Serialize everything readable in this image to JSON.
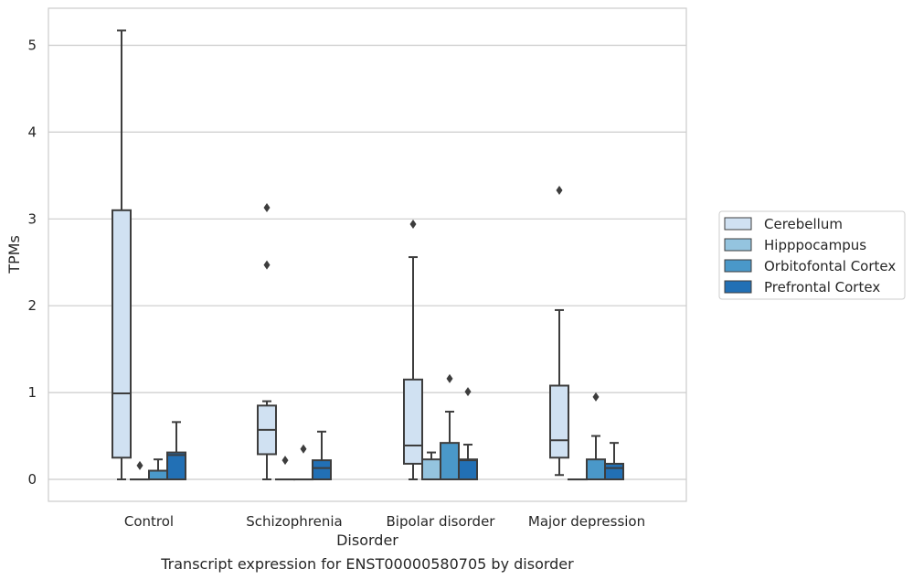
{
  "chart_data": {
    "type": "box",
    "caption": "Transcript expression for ENST00000580705 by disorder",
    "xlabel": "Disorder",
    "ylabel": "TPMs",
    "ylim": [
      -0.25,
      5.4
    ],
    "yticks": [
      "0",
      "1",
      "2",
      "3",
      "4",
      "5"
    ],
    "grid": "horizontal",
    "legend_position": "right",
    "categories": [
      "Control",
      "Schizophrenia",
      "Bipolar disorder",
      "Major depression"
    ],
    "series": [
      {
        "name": "Cerebellum",
        "color": "#d0e1f2",
        "boxes": [
          {
            "whisker_low": 0,
            "q1": 0.25,
            "median": 0.99,
            "q3": 3.1,
            "whisker_high": 5.17,
            "outliers": []
          },
          {
            "whisker_low": 0,
            "q1": 0.29,
            "median": 0.57,
            "q3": 0.85,
            "whisker_high": 0.9,
            "outliers": [
              3.13,
              2.47
            ]
          },
          {
            "whisker_low": 0,
            "q1": 0.18,
            "median": 0.39,
            "q3": 1.15,
            "whisker_high": 2.56,
            "outliers": [
              2.94
            ]
          },
          {
            "whisker_low": 0.05,
            "q1": 0.25,
            "median": 0.45,
            "q3": 1.08,
            "whisker_high": 1.95,
            "outliers": [
              3.33
            ]
          }
        ]
      },
      {
        "name": "Hipppocampus",
        "color": "#94c4df",
        "boxes": [
          {
            "whisker_low": 0,
            "q1": 0,
            "median": 0,
            "q3": 0,
            "whisker_high": 0,
            "outliers": [
              0.16
            ]
          },
          {
            "whisker_low": 0,
            "q1": 0,
            "median": 0,
            "q3": 0,
            "whisker_high": 0,
            "outliers": [
              0.22
            ]
          },
          {
            "whisker_low": 0,
            "q1": 0,
            "median": 0,
            "q3": 0.23,
            "whisker_high": 0.31,
            "outliers": []
          },
          {
            "whisker_low": 0,
            "q1": 0,
            "median": 0,
            "q3": 0,
            "whisker_high": 0,
            "outliers": []
          }
        ]
      },
      {
        "name": "Orbitofontal Cortex",
        "color": "#4a98c9",
        "boxes": [
          {
            "whisker_low": 0,
            "q1": 0,
            "median": 0,
            "q3": 0.1,
            "whisker_high": 0.23,
            "outliers": []
          },
          {
            "whisker_low": 0,
            "q1": 0,
            "median": 0,
            "q3": 0,
            "whisker_high": 0,
            "outliers": [
              0.35
            ]
          },
          {
            "whisker_low": 0,
            "q1": 0,
            "median": 0,
            "q3": 0.42,
            "whisker_high": 0.78,
            "outliers": [
              1.16
            ]
          },
          {
            "whisker_low": 0,
            "q1": 0,
            "median": 0,
            "q3": 0.23,
            "whisker_high": 0.5,
            "outliers": [
              0.95
            ]
          }
        ]
      },
      {
        "name": "Prefrontal Cortex",
        "color": "#2270b5",
        "boxes": [
          {
            "whisker_low": 0,
            "q1": 0,
            "median": 0.28,
            "q3": 0.31,
            "whisker_high": 0.66,
            "outliers": []
          },
          {
            "whisker_low": 0,
            "q1": 0,
            "median": 0.13,
            "q3": 0.22,
            "whisker_high": 0.55,
            "outliers": []
          },
          {
            "whisker_low": 0,
            "q1": 0,
            "median": 0.22,
            "q3": 0.23,
            "whisker_high": 0.4,
            "outliers": [
              1.01
            ]
          },
          {
            "whisker_low": 0,
            "q1": 0,
            "median": 0.13,
            "q3": 0.18,
            "whisker_high": 0.42,
            "outliers": []
          }
        ]
      }
    ]
  }
}
